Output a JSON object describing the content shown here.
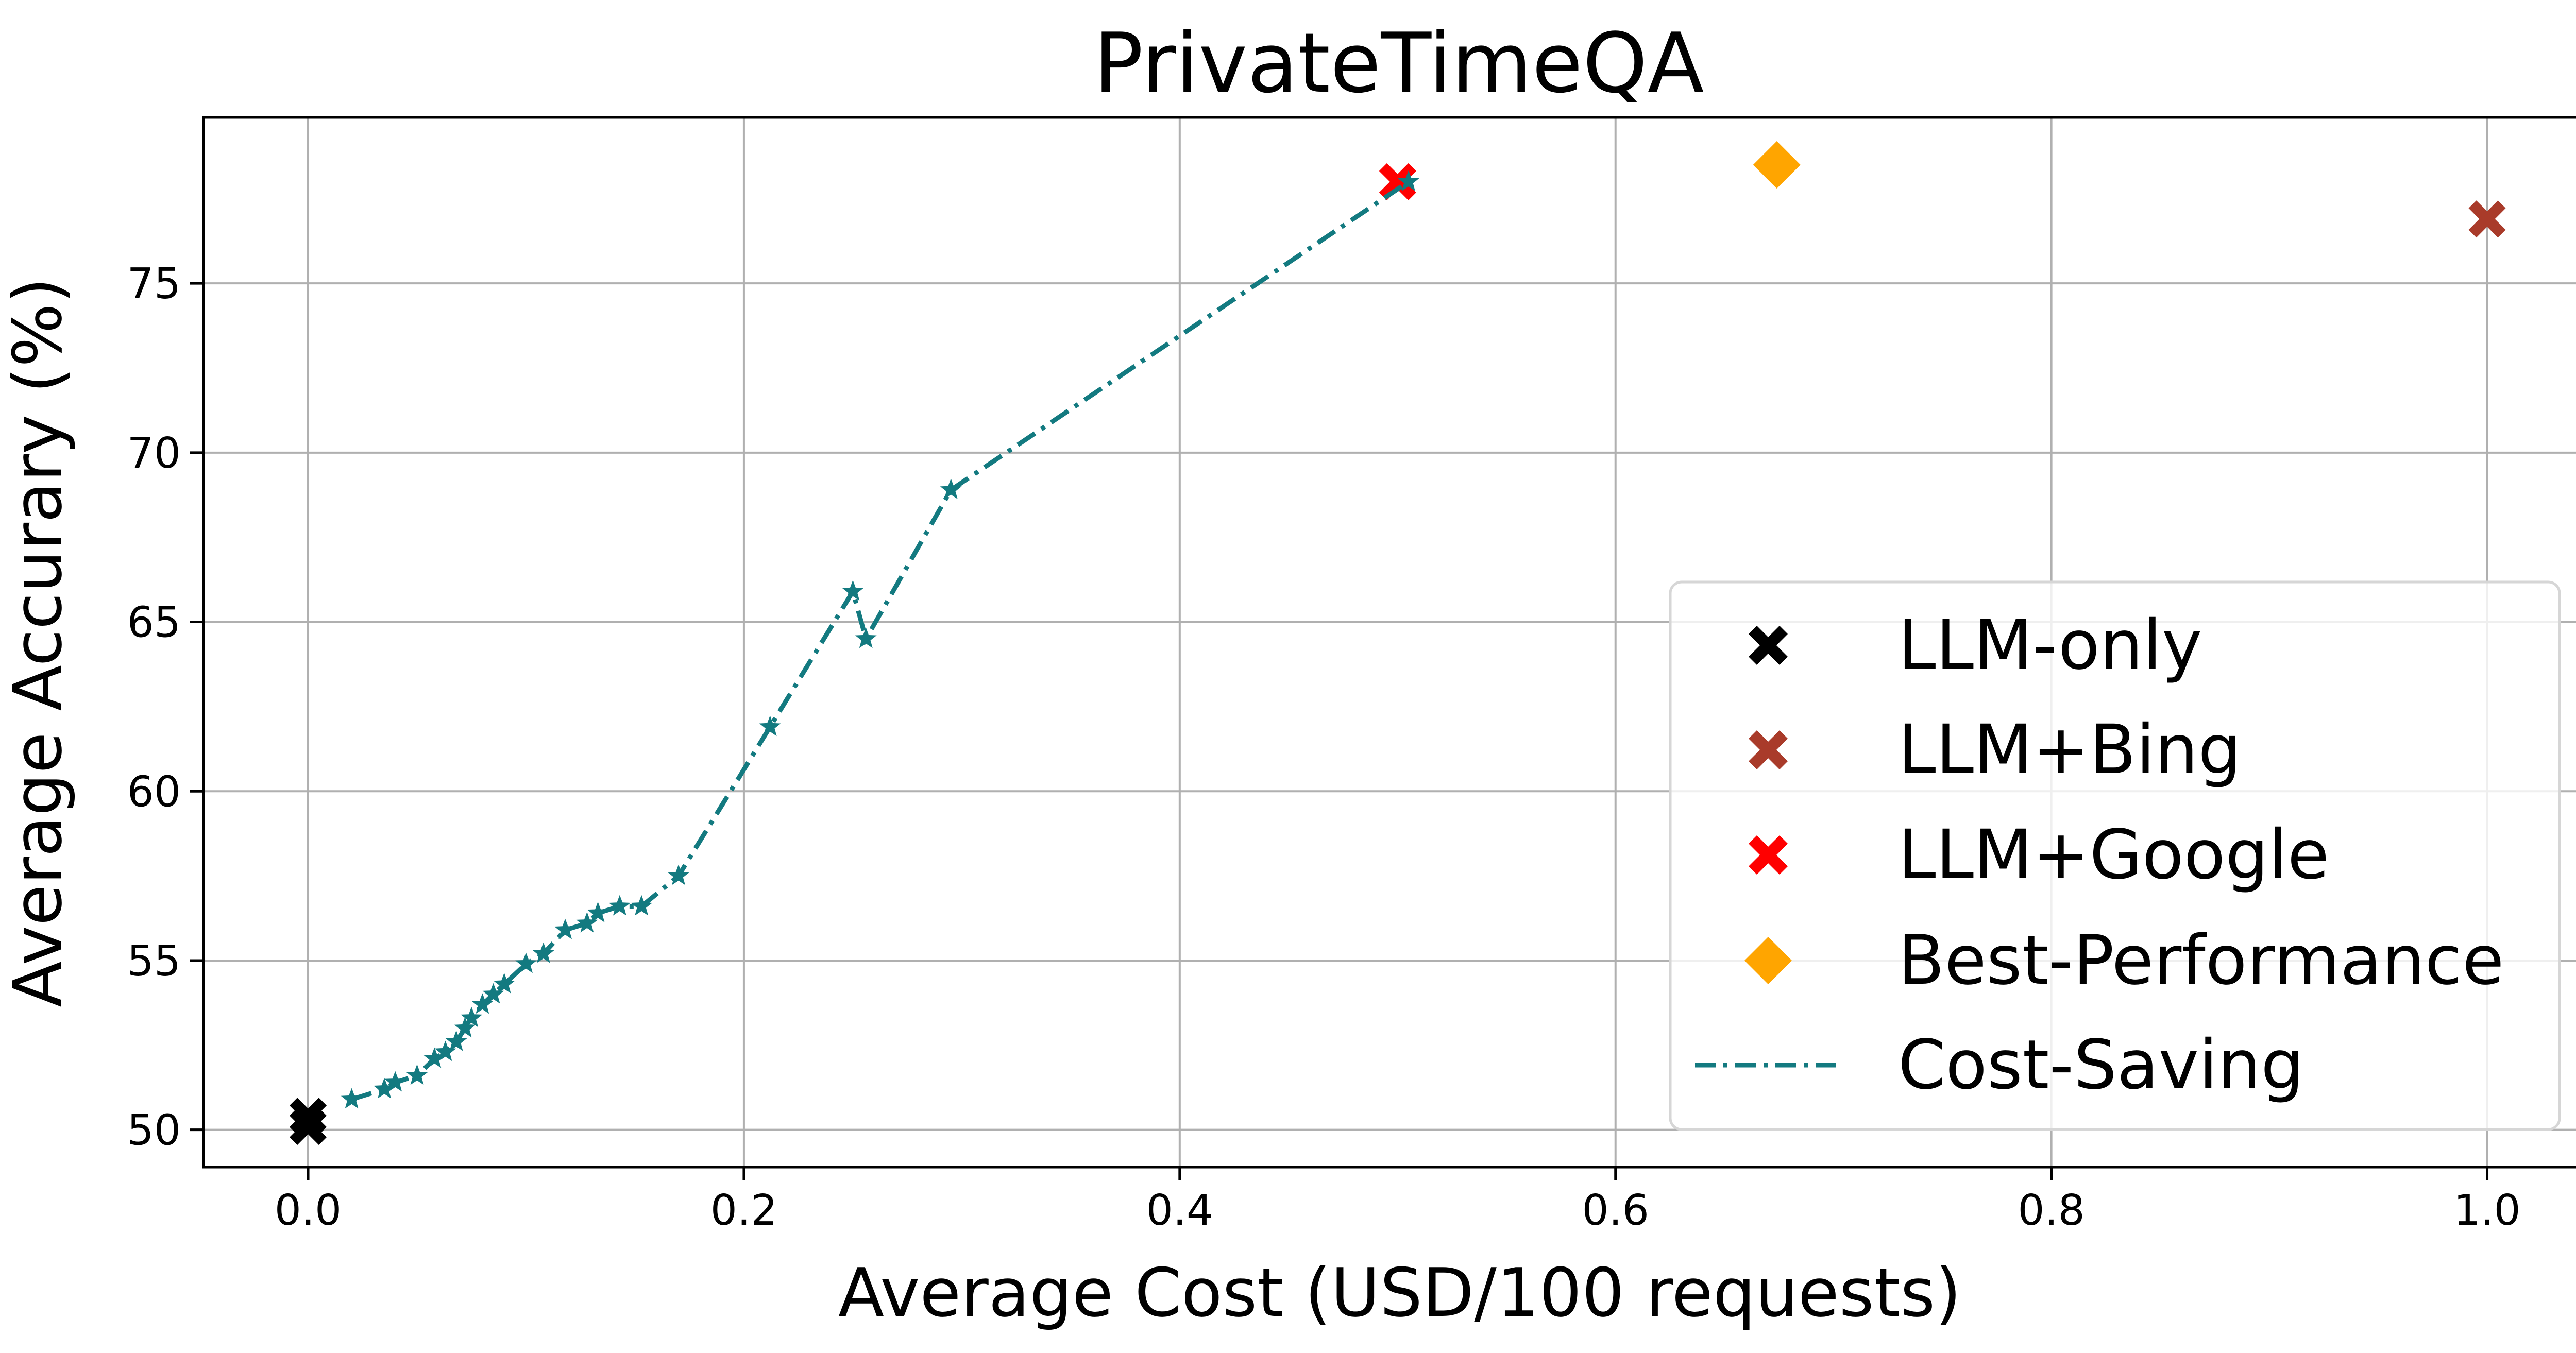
{
  "chart_data": {
    "type": "scatter",
    "title": "PrivateTimeQA",
    "xlabel": "Average Cost (USD/100 requests)",
    "ylabel": "Average Accurary (%)",
    "xlim": [
      -0.048,
      1.05
    ],
    "ylim": [
      48.9,
      79.9
    ],
    "xticks": [
      0.0,
      0.2,
      0.4,
      0.6,
      0.8,
      1.0
    ],
    "xtick_labels": [
      "0.0",
      "0.2",
      "0.4",
      "0.6",
      "0.8",
      "1.0"
    ],
    "yticks": [
      50,
      55,
      60,
      65,
      70,
      75
    ],
    "ytick_labels": [
      "50",
      "55",
      "60",
      "65",
      "70",
      "75"
    ],
    "grid": true,
    "legend_position": "lower-right",
    "colors": {
      "llm_only": "#000000",
      "llm_bing": "#a93b2a",
      "llm_google": "#ff0000",
      "best_performance": "#ffa500",
      "cost_saving": "#137a80"
    },
    "series": [
      {
        "name": "LLM-only",
        "marker": "x-filled",
        "color_key": "llm_only",
        "points": [
          [
            0.0,
            50.4
          ],
          [
            0.0,
            50.1
          ]
        ]
      },
      {
        "name": "LLM+Bing",
        "marker": "x-filled",
        "color_key": "llm_bing",
        "points": [
          [
            1.0,
            76.9
          ]
        ]
      },
      {
        "name": "LLM+Google",
        "marker": "x-filled",
        "color_key": "llm_google",
        "points": [
          [
            0.5,
            78.0
          ]
        ]
      },
      {
        "name": "Best-Performance",
        "marker": "diamond",
        "color_key": "best_performance",
        "points": [
          [
            0.674,
            78.5
          ]
        ]
      },
      {
        "name": "Cost-Saving",
        "marker": "star",
        "line": "dashdot",
        "color_key": "cost_saving",
        "points": [
          [
            0.02,
            50.9
          ],
          [
            0.035,
            51.2
          ],
          [
            0.04,
            51.4
          ],
          [
            0.05,
            51.6
          ],
          [
            0.058,
            52.1
          ],
          [
            0.063,
            52.3
          ],
          [
            0.068,
            52.6
          ],
          [
            0.072,
            53.0
          ],
          [
            0.075,
            53.3
          ],
          [
            0.08,
            53.7
          ],
          [
            0.085,
            54.0
          ],
          [
            0.09,
            54.3
          ],
          [
            0.1,
            54.9
          ],
          [
            0.108,
            55.2
          ],
          [
            0.118,
            55.9
          ],
          [
            0.128,
            56.1
          ],
          [
            0.133,
            56.4
          ],
          [
            0.143,
            56.6
          ],
          [
            0.153,
            56.6
          ],
          [
            0.17,
            57.5
          ],
          [
            0.212,
            61.9
          ],
          [
            0.25,
            65.9
          ],
          [
            0.256,
            64.5
          ],
          [
            0.295,
            68.9
          ],
          [
            0.505,
            78.0
          ]
        ]
      }
    ]
  }
}
